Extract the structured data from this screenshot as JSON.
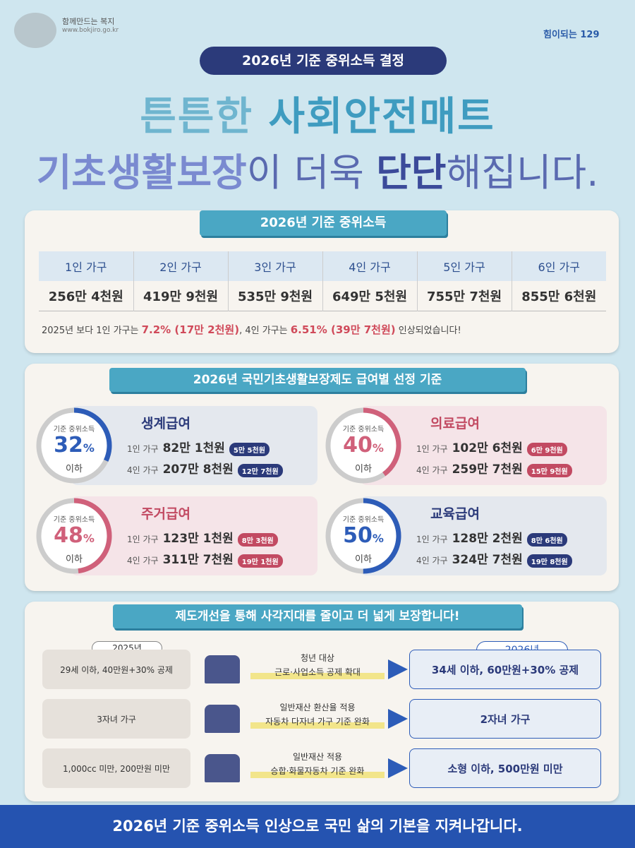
{
  "header": {
    "logo_left": "함께만드는 복지",
    "logo_url": "www.bokjiro.go.kr",
    "logo_right": "힘이되는 129",
    "banner": "2026년 기준 중위소득 결정",
    "headline_1": [
      "튼튼한 ",
      "사회안전매트"
    ],
    "headline_2": [
      "기초생활보장",
      "이 더욱 ",
      "단단",
      "해집니다."
    ]
  },
  "median_income": {
    "title": "2026년 기준 중위소득",
    "headers": [
      "1인 가구",
      "2인 가구",
      "3인 가구",
      "4인 가구",
      "5인 가구",
      "6인 가구"
    ],
    "amounts": [
      "256만 4천원",
      "419만 9천원",
      "535만 9천원",
      "649만 5천원",
      "755만 7천원",
      "855만 6천원"
    ],
    "note": [
      "2025년 보다 1인 가구는 ",
      "7.2% (17만 2천원)",
      ", 4인 가구는 ",
      "6.51% (39만 7천원)",
      " 인상되었습니다!"
    ]
  },
  "benefits": {
    "title": "2026년 국민기초생활보장제도 급여별 선정 기준",
    "programs": [
      {
        "gauge_label": "기준 중위소득",
        "percent": 32,
        "unit": "%",
        "below": "이하",
        "color": "#2d5cb8",
        "name": "생계급여",
        "rows": [
          {
            "household": "1인 가구",
            "amount": "82만 1천원",
            "increase": "5만 5천원"
          },
          {
            "household": "4인 가구",
            "amount": "207만 8천원",
            "increase": "12만 7천원"
          }
        ]
      },
      {
        "gauge_label": "기준 중위소득",
        "percent": 40,
        "unit": "%",
        "below": "이하",
        "color": "#d0607a",
        "name": "의료급여",
        "rows": [
          {
            "household": "1인 가구",
            "amount": "102만 6천원",
            "increase": "6만 9천원"
          },
          {
            "household": "4인 가구",
            "amount": "259만 7천원",
            "increase": "15만 9천원"
          }
        ]
      },
      {
        "gauge_label": "기준 중위소득",
        "percent": 48,
        "unit": "%",
        "below": "이하",
        "color": "#d0607a",
        "name": "주거급여",
        "rows": [
          {
            "household": "1인 가구",
            "amount": "123만 1천원",
            "increase": "8만 3천원"
          },
          {
            "household": "4인 가구",
            "amount": "311만 7천원",
            "increase": "19만 1천원"
          }
        ]
      },
      {
        "gauge_label": "기준 중위소득",
        "percent": 50,
        "unit": "%",
        "below": "이하",
        "color": "#2d5cb8",
        "name": "교육급여",
        "rows": [
          {
            "household": "1인 가구",
            "amount": "128만 2천원",
            "increase": "8만 6천원"
          },
          {
            "household": "4인 가구",
            "amount": "324만 7천원",
            "increase": "19만 8천원"
          }
        ]
      }
    ]
  },
  "improvements": {
    "title": "제도개선을 통해 사각지대를 줄이고 더 넓게 보장합니다!",
    "year_before": "2025년",
    "year_after": "2026년",
    "rows": [
      {
        "before": "29세 이하, 40만원+30% 공제",
        "change": [
          "청년 대상",
          "근로·사업소득 공제 확대"
        ],
        "after": "34세 이하, 60만원+30% 공제"
      },
      {
        "before": "3자녀 가구",
        "change": [
          "일반재산 환산율 적용",
          "자동차 다자녀 가구 기준 완화"
        ],
        "after": "2자녀 가구"
      },
      {
        "before": "1,000cc 미만, 200만원 미만",
        "change": [
          "일반재산 적용",
          "승합·화물자동차 기준 완화"
        ],
        "after": "소형 이하, 500만원 미만"
      }
    ]
  },
  "footer": "2026년 기준 중위소득 인상으로 국민 삶의 기본을 지켜나갑니다."
}
